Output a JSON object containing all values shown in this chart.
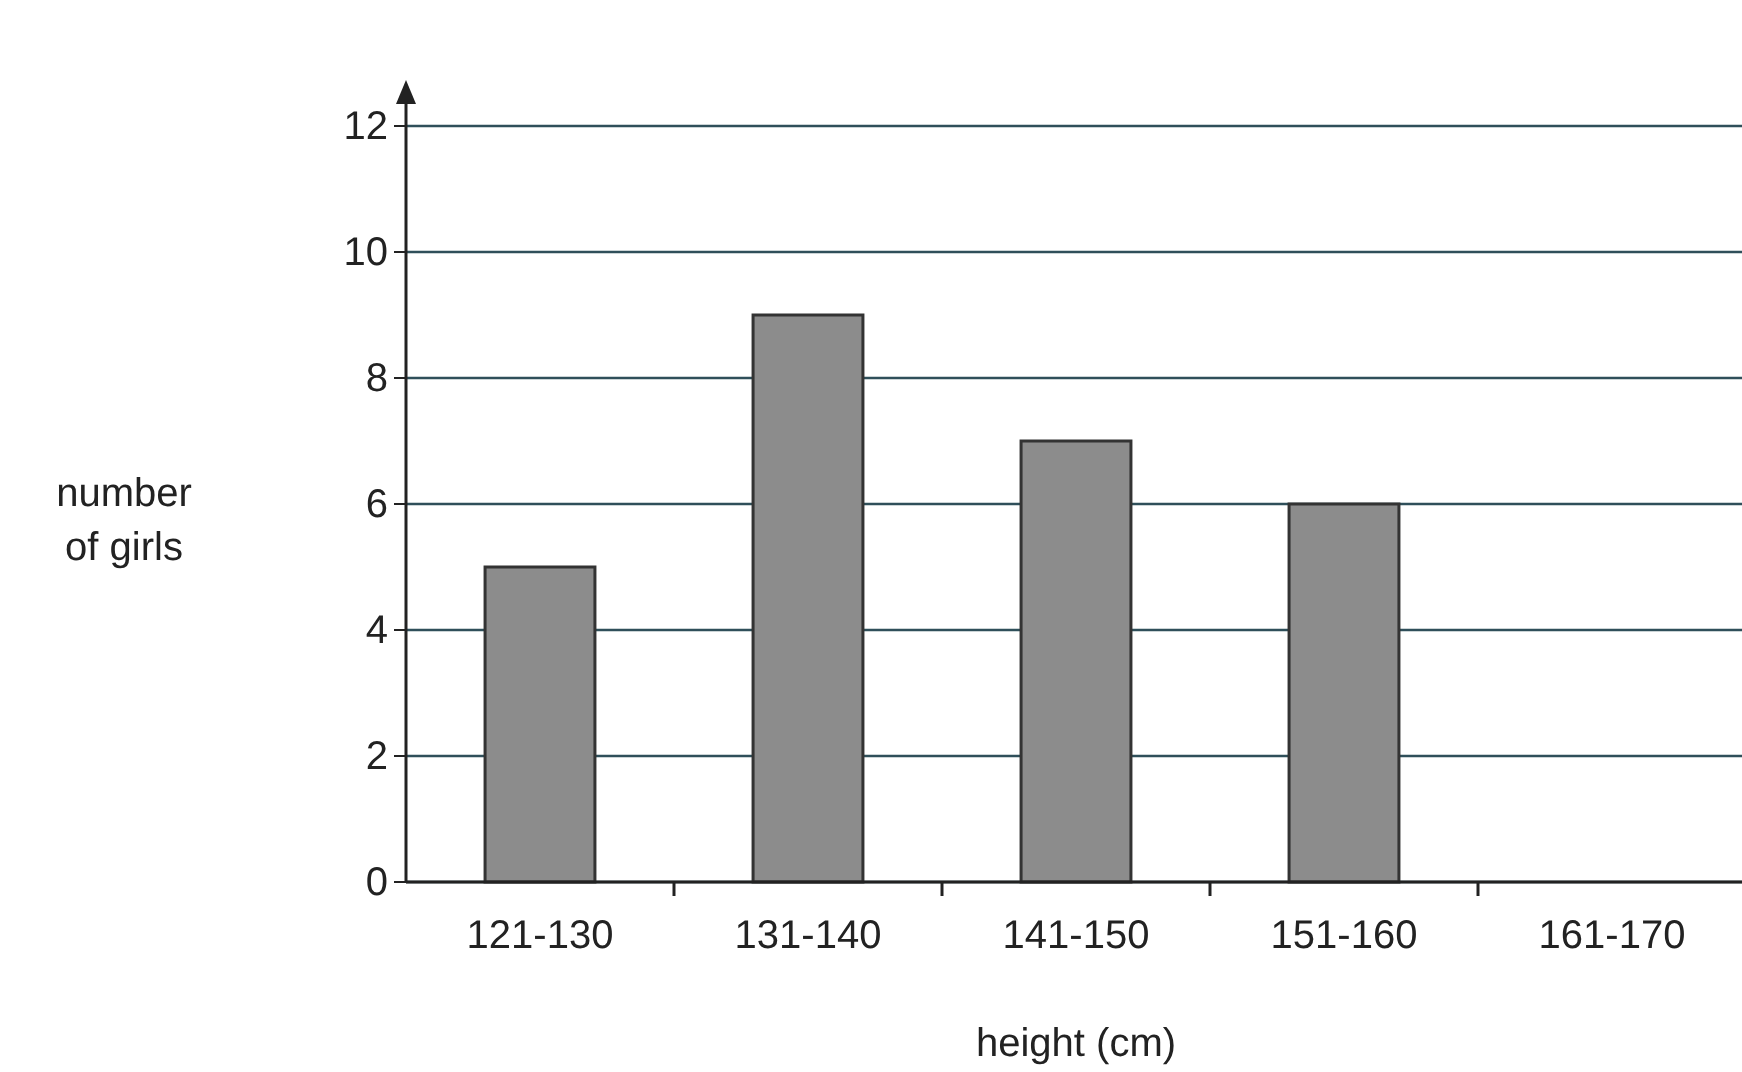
{
  "chart_data": {
    "type": "bar",
    "xlabel": "height (cm)",
    "ylabel": "number of girls",
    "categories": [
      "121-130",
      "131-140",
      "141-150",
      "151-160",
      "161-170"
    ],
    "values": [
      5,
      9,
      7,
      6,
      null
    ],
    "color": "#8c8c8c",
    "ylim": [
      0,
      12
    ],
    "yticks": [
      0,
      2,
      4,
      6,
      8,
      10,
      12
    ],
    "grid": "y"
  }
}
